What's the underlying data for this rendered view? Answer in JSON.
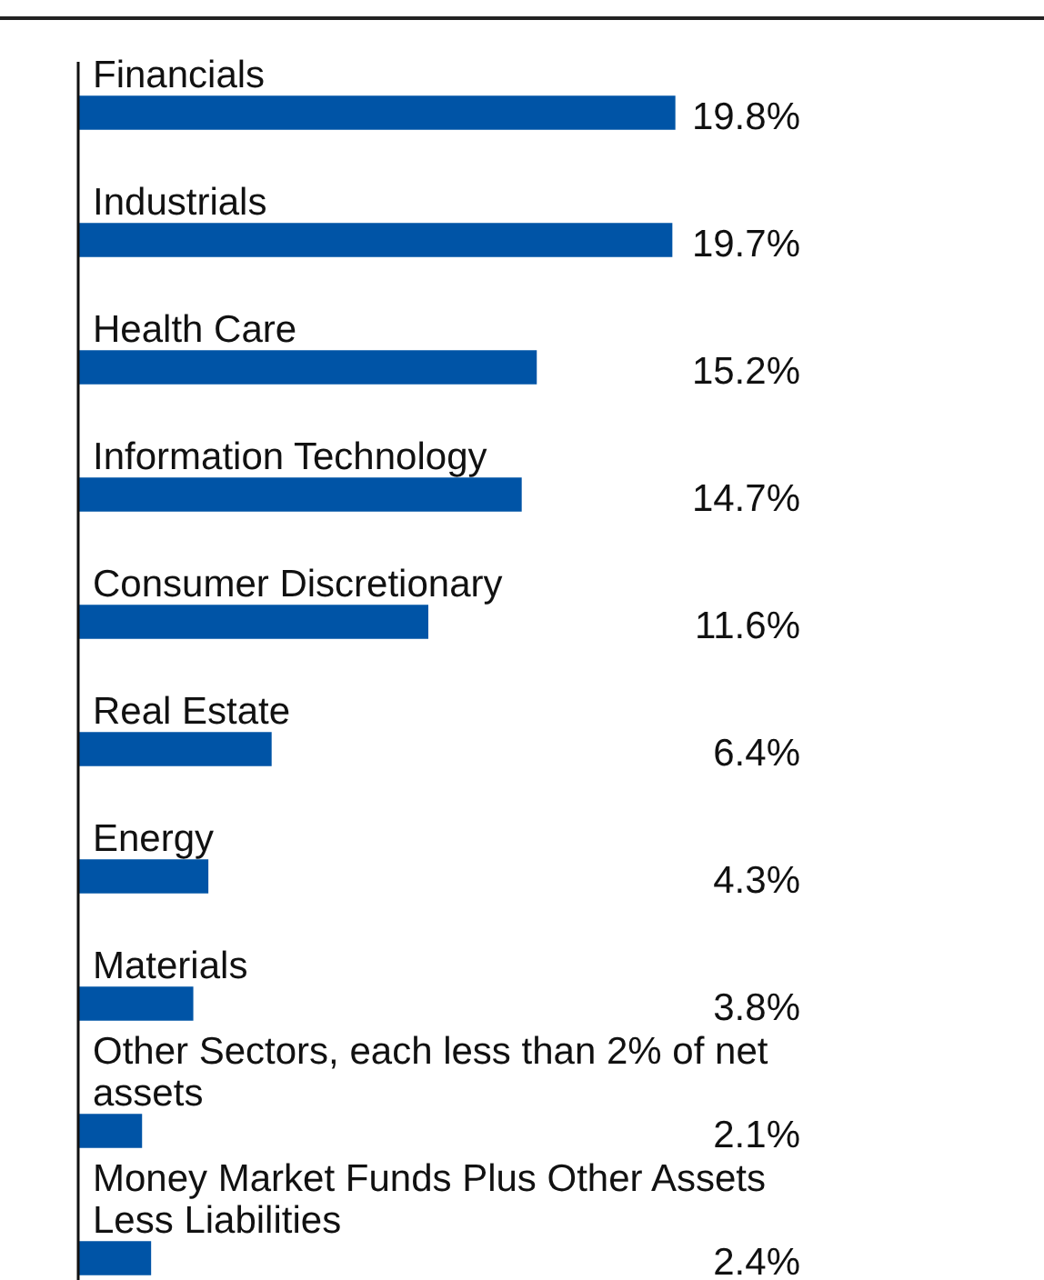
{
  "chart_data": {
    "type": "bar",
    "orientation": "horizontal",
    "categories": [
      "Financials",
      "Industrials",
      "Health Care",
      "Information Technology",
      "Consumer Discretionary",
      "Real Estate",
      "Energy",
      "Materials",
      "Other Sectors, each less than 2% of net assets",
      "Money Market Funds Plus Other Assets Less Liabilities"
    ],
    "values": [
      19.8,
      19.7,
      15.2,
      14.7,
      11.6,
      6.4,
      4.3,
      3.8,
      2.1,
      2.4
    ],
    "value_labels": [
      "19.8%",
      "19.7%",
      "15.2%",
      "14.7%",
      "11.6%",
      "6.4%",
      "4.3%",
      "3.8%",
      "2.1%",
      "2.4%"
    ],
    "color": "#0054a6",
    "tick_labels": false
  }
}
